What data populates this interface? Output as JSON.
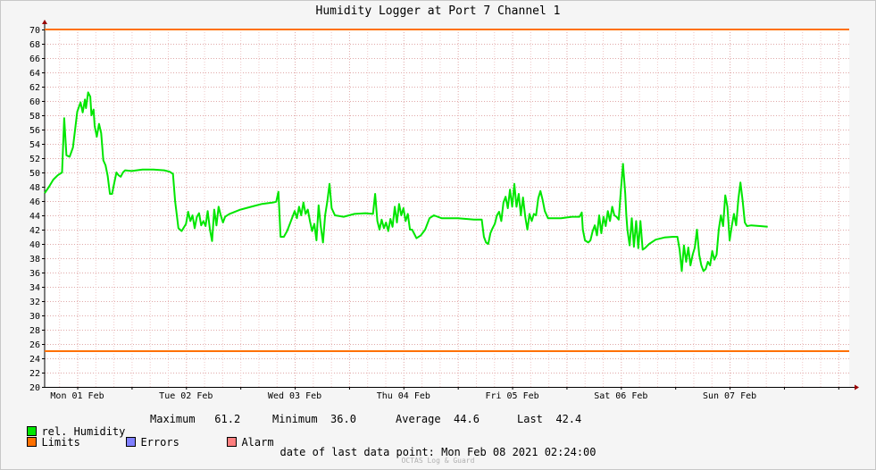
{
  "title": "Humidity Logger at Port 7 Channel 1",
  "legend": {
    "humidity": {
      "label": "rel. Humidity",
      "color": "#00e600"
    },
    "limits": {
      "label": "Limits",
      "color": "#ff7000"
    },
    "errors": {
      "label": "Errors",
      "color": "#7f7fff"
    },
    "alarm": {
      "label": "Alarm",
      "color": "#ff7f7f"
    }
  },
  "stats": {
    "maximum_label": "Maximum",
    "maximum_value": "61.2",
    "minimum_label": "Minimum",
    "minimum_value": "36.0",
    "average_label": "Average",
    "average_value": "44.6",
    "last_label": "Last",
    "last_value": "42.4"
  },
  "footer": {
    "label": "date of last data point:",
    "value": "Mon Feb 08 2021 02:24:00"
  },
  "credit": "OCTAS Log & Guard",
  "colors": {
    "grid_major": "#e0a8a8",
    "grid_minor": "#f0c8c8",
    "axis": "#000000",
    "arrow": "#990000"
  },
  "chart_data": {
    "type": "line",
    "title": "Humidity Logger at Port 7 Channel 1",
    "x_unit": "days since Mon 01 Feb 00:00",
    "x_range": [
      -0.3,
      7.1
    ],
    "y_range": [
      20,
      70
    ],
    "y_ticks": [
      20,
      22,
      24,
      26,
      28,
      30,
      32,
      34,
      36,
      38,
      40,
      42,
      44,
      46,
      48,
      50,
      52,
      54,
      56,
      58,
      60,
      62,
      64,
      66,
      68,
      70
    ],
    "x_ticks": [
      {
        "x": 0,
        "label": "Mon 01 Feb"
      },
      {
        "x": 1,
        "label": "Tue 02 Feb"
      },
      {
        "x": 2,
        "label": "Wed 03 Feb"
      },
      {
        "x": 3,
        "label": "Thu 04 Feb"
      },
      {
        "x": 4,
        "label": "Fri 05 Feb"
      },
      {
        "x": 5,
        "label": "Sat 06 Feb"
      },
      {
        "x": 6,
        "label": "Sun 07 Feb"
      }
    ],
    "grid": true,
    "limits": [
      70,
      25
    ],
    "series": [
      {
        "name": "rel. Humidity",
        "color": "#00e600",
        "points": [
          [
            -0.3,
            47.1
          ],
          [
            -0.26,
            48.0
          ],
          [
            -0.22,
            49.0
          ],
          [
            -0.18,
            49.6
          ],
          [
            -0.14,
            50.0
          ],
          [
            -0.12,
            57.6
          ],
          [
            -0.1,
            52.4
          ],
          [
            -0.07,
            52.2
          ],
          [
            -0.04,
            53.5
          ],
          [
            -0.02,
            56.0
          ],
          [
            0.0,
            58.5
          ],
          [
            0.03,
            59.8
          ],
          [
            0.05,
            58.4
          ],
          [
            0.07,
            60.2
          ],
          [
            0.08,
            59.0
          ],
          [
            0.1,
            61.2
          ],
          [
            0.12,
            60.6
          ],
          [
            0.13,
            58.0
          ],
          [
            0.15,
            58.8
          ],
          [
            0.16,
            56.5
          ],
          [
            0.18,
            55.0
          ],
          [
            0.2,
            56.8
          ],
          [
            0.22,
            55.5
          ],
          [
            0.24,
            51.7
          ],
          [
            0.26,
            51.0
          ],
          [
            0.28,
            49.5
          ],
          [
            0.3,
            47.0
          ],
          [
            0.32,
            47.0
          ],
          [
            0.34,
            48.5
          ],
          [
            0.36,
            50.0
          ],
          [
            0.38,
            49.6
          ],
          [
            0.4,
            49.4
          ],
          [
            0.42,
            50.0
          ],
          [
            0.44,
            50.3
          ],
          [
            0.5,
            50.2
          ],
          [
            0.6,
            50.4
          ],
          [
            0.7,
            50.4
          ],
          [
            0.8,
            50.3
          ],
          [
            0.85,
            50.1
          ],
          [
            0.88,
            49.8
          ],
          [
            0.9,
            46.0
          ],
          [
            0.93,
            42.2
          ],
          [
            0.96,
            41.8
          ],
          [
            1.0,
            42.8
          ],
          [
            1.02,
            44.5
          ],
          [
            1.04,
            43.2
          ],
          [
            1.06,
            44.0
          ],
          [
            1.08,
            42.2
          ],
          [
            1.1,
            43.8
          ],
          [
            1.12,
            44.3
          ],
          [
            1.14,
            42.6
          ],
          [
            1.16,
            43.2
          ],
          [
            1.18,
            42.5
          ],
          [
            1.2,
            44.6
          ],
          [
            1.22,
            42.0
          ],
          [
            1.24,
            40.4
          ],
          [
            1.26,
            44.8
          ],
          [
            1.28,
            42.6
          ],
          [
            1.3,
            45.2
          ],
          [
            1.32,
            44.0
          ],
          [
            1.34,
            43.0
          ],
          [
            1.36,
            43.8
          ],
          [
            1.4,
            44.2
          ],
          [
            1.5,
            44.8
          ],
          [
            1.6,
            45.2
          ],
          [
            1.7,
            45.6
          ],
          [
            1.8,
            45.8
          ],
          [
            1.83,
            45.9
          ],
          [
            1.85,
            47.3
          ],
          [
            1.87,
            41.0
          ],
          [
            1.9,
            41.0
          ],
          [
            1.93,
            41.8
          ],
          [
            1.96,
            43.0
          ],
          [
            1.98,
            43.8
          ],
          [
            2.0,
            44.6
          ],
          [
            2.02,
            43.6
          ],
          [
            2.04,
            45.2
          ],
          [
            2.06,
            44.0
          ],
          [
            2.08,
            45.8
          ],
          [
            2.1,
            44.2
          ],
          [
            2.12,
            44.8
          ],
          [
            2.14,
            43.2
          ],
          [
            2.16,
            41.8
          ],
          [
            2.18,
            42.8
          ],
          [
            2.2,
            40.5
          ],
          [
            2.22,
            45.4
          ],
          [
            2.24,
            42.4
          ],
          [
            2.26,
            40.2
          ],
          [
            2.28,
            44.0
          ],
          [
            2.3,
            46.0
          ],
          [
            2.32,
            48.4
          ],
          [
            2.34,
            45.0
          ],
          [
            2.37,
            44.0
          ],
          [
            2.45,
            43.8
          ],
          [
            2.55,
            44.2
          ],
          [
            2.65,
            44.3
          ],
          [
            2.72,
            44.2
          ],
          [
            2.74,
            47.0
          ],
          [
            2.76,
            43.2
          ],
          [
            2.78,
            42.0
          ],
          [
            2.8,
            43.4
          ],
          [
            2.82,
            42.2
          ],
          [
            2.84,
            43.0
          ],
          [
            2.86,
            41.8
          ],
          [
            2.88,
            43.5
          ],
          [
            2.9,
            42.4
          ],
          [
            2.92,
            45.2
          ],
          [
            2.94,
            43.0
          ],
          [
            2.96,
            45.6
          ],
          [
            2.98,
            44.0
          ],
          [
            3.0,
            45.0
          ],
          [
            3.02,
            43.2
          ],
          [
            3.04,
            44.2
          ],
          [
            3.06,
            42.0
          ],
          [
            3.08,
            42.0
          ],
          [
            3.12,
            40.8
          ],
          [
            3.16,
            41.2
          ],
          [
            3.2,
            42.0
          ],
          [
            3.24,
            43.6
          ],
          [
            3.28,
            44.0
          ],
          [
            3.35,
            43.6
          ],
          [
            3.5,
            43.6
          ],
          [
            3.65,
            43.4
          ],
          [
            3.72,
            43.4
          ],
          [
            3.74,
            41.0
          ],
          [
            3.76,
            40.2
          ],
          [
            3.78,
            40.0
          ],
          [
            3.8,
            41.5
          ],
          [
            3.82,
            42.2
          ],
          [
            3.84,
            42.8
          ],
          [
            3.86,
            44.0
          ],
          [
            3.88,
            44.5
          ],
          [
            3.9,
            43.2
          ],
          [
            3.92,
            45.8
          ],
          [
            3.94,
            46.6
          ],
          [
            3.96,
            45.0
          ],
          [
            3.98,
            47.6
          ],
          [
            4.0,
            45.2
          ],
          [
            4.02,
            48.4
          ],
          [
            4.04,
            45.2
          ],
          [
            4.06,
            47.0
          ],
          [
            4.08,
            44.0
          ],
          [
            4.1,
            46.5
          ],
          [
            4.12,
            43.8
          ],
          [
            4.14,
            42.0
          ],
          [
            4.16,
            44.2
          ],
          [
            4.18,
            43.2
          ],
          [
            4.2,
            44.2
          ],
          [
            4.22,
            44.0
          ],
          [
            4.24,
            46.4
          ],
          [
            4.26,
            47.4
          ],
          [
            4.28,
            46.2
          ],
          [
            4.3,
            44.6
          ],
          [
            4.33,
            43.6
          ],
          [
            4.45,
            43.6
          ],
          [
            4.55,
            43.8
          ],
          [
            4.62,
            43.8
          ],
          [
            4.64,
            44.4
          ],
          [
            4.65,
            42.0
          ],
          [
            4.67,
            40.5
          ],
          [
            4.7,
            40.2
          ],
          [
            4.72,
            40.5
          ],
          [
            4.74,
            41.8
          ],
          [
            4.76,
            42.6
          ],
          [
            4.78,
            41.2
          ],
          [
            4.8,
            44.0
          ],
          [
            4.82,
            41.5
          ],
          [
            4.84,
            43.8
          ],
          [
            4.86,
            42.5
          ],
          [
            4.88,
            44.6
          ],
          [
            4.9,
            43.2
          ],
          [
            4.92,
            45.2
          ],
          [
            4.94,
            44.0
          ],
          [
            4.96,
            43.8
          ],
          [
            4.98,
            43.4
          ],
          [
            5.0,
            47.5
          ],
          [
            5.02,
            51.2
          ],
          [
            5.04,
            47.0
          ],
          [
            5.05,
            44.0
          ],
          [
            5.06,
            42.0
          ],
          [
            5.08,
            39.8
          ],
          [
            5.1,
            43.6
          ],
          [
            5.12,
            39.6
          ],
          [
            5.14,
            43.2
          ],
          [
            5.16,
            39.4
          ],
          [
            5.18,
            43.2
          ],
          [
            5.2,
            39.2
          ],
          [
            5.22,
            39.4
          ],
          [
            5.26,
            40.0
          ],
          [
            5.32,
            40.6
          ],
          [
            5.4,
            40.9
          ],
          [
            5.48,
            41.0
          ],
          [
            5.52,
            41.0
          ],
          [
            5.54,
            39.2
          ],
          [
            5.56,
            36.2
          ],
          [
            5.58,
            39.8
          ],
          [
            5.6,
            37.5
          ],
          [
            5.62,
            39.5
          ],
          [
            5.64,
            37.0
          ],
          [
            5.66,
            38.5
          ],
          [
            5.68,
            39.5
          ],
          [
            5.7,
            42.0
          ],
          [
            5.72,
            38.5
          ],
          [
            5.74,
            37.0
          ],
          [
            5.76,
            36.2
          ],
          [
            5.78,
            36.5
          ],
          [
            5.8,
            37.5
          ],
          [
            5.82,
            37.0
          ],
          [
            5.84,
            39.0
          ],
          [
            5.86,
            37.8
          ],
          [
            5.88,
            38.5
          ],
          [
            5.9,
            42.0
          ],
          [
            5.92,
            44.0
          ],
          [
            5.94,
            42.5
          ],
          [
            5.96,
            46.8
          ],
          [
            5.98,
            45.2
          ],
          [
            6.0,
            40.5
          ],
          [
            6.02,
            42.5
          ],
          [
            6.04,
            44.2
          ],
          [
            6.06,
            42.6
          ],
          [
            6.08,
            46.2
          ],
          [
            6.1,
            48.6
          ],
          [
            6.12,
            46.0
          ],
          [
            6.14,
            43.0
          ],
          [
            6.16,
            42.5
          ],
          [
            6.2,
            42.6
          ],
          [
            6.28,
            42.5
          ],
          [
            6.35,
            42.4
          ]
        ]
      }
    ]
  }
}
